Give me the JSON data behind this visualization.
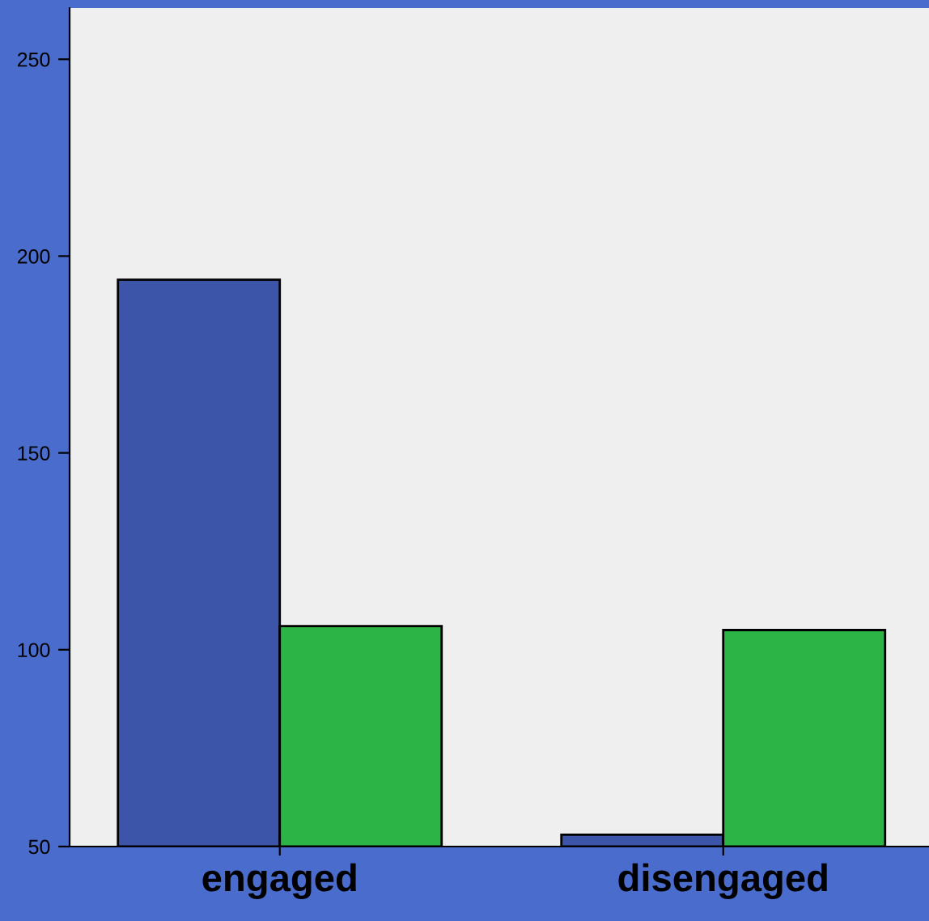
{
  "chart_data": {
    "type": "bar",
    "categories": [
      "engaged",
      "disengaged"
    ],
    "series": [
      {
        "color": "#3c55a8",
        "values": [
          194,
          53
        ]
      },
      {
        "color": "#2db446",
        "values": [
          106,
          105
        ]
      }
    ],
    "ylim": [
      50,
      263
    ],
    "yticks": [
      50,
      100,
      150,
      200,
      250
    ],
    "grid": false,
    "legend": false
  }
}
